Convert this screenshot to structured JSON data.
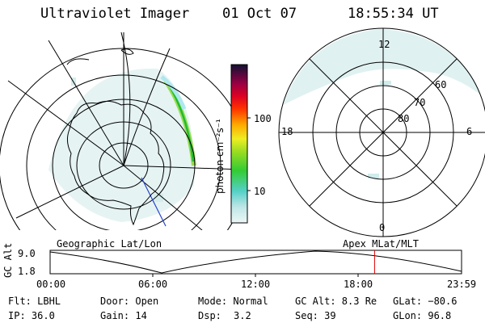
{
  "header": {
    "title": "Ultraviolet Imager",
    "date": "01 Oct 07",
    "time": "18:55:34 UT"
  },
  "colorbar": {
    "unit_label": "photon cm⁻²s⁻¹",
    "ticks": [
      "100",
      "10"
    ],
    "scale": "log"
  },
  "left_map": {
    "caption": "Geographic Lat/Lon"
  },
  "right_map": {
    "caption": "Apex MLat/MLT",
    "mlt_labels": {
      "top": "12",
      "left": "18",
      "right": "6",
      "bottom": "0"
    },
    "lat_labels": [
      "60",
      "70",
      "80"
    ]
  },
  "timeline": {
    "ylabel": "GC Alt",
    "yticks": [
      "9.0",
      "1.8"
    ],
    "xticks": [
      "00:00",
      "06:00",
      "12:00",
      "18:00",
      "23:59"
    ],
    "current_time_fraction": 0.7886
  },
  "info": {
    "flt": "Flt: LBHL",
    "door": "Door: Open",
    "mode": "Mode: Normal",
    "gc_alt": "GC Alt: 8.3 Re",
    "glat": "GLat: −80.6",
    "ip": "IP: 36.0",
    "gain": "Gain: 14",
    "dsp_label": "Dsp:",
    "dsp_value": "3.2",
    "seq": "Seq: 39",
    "glon": "GLon:  96.8"
  }
}
